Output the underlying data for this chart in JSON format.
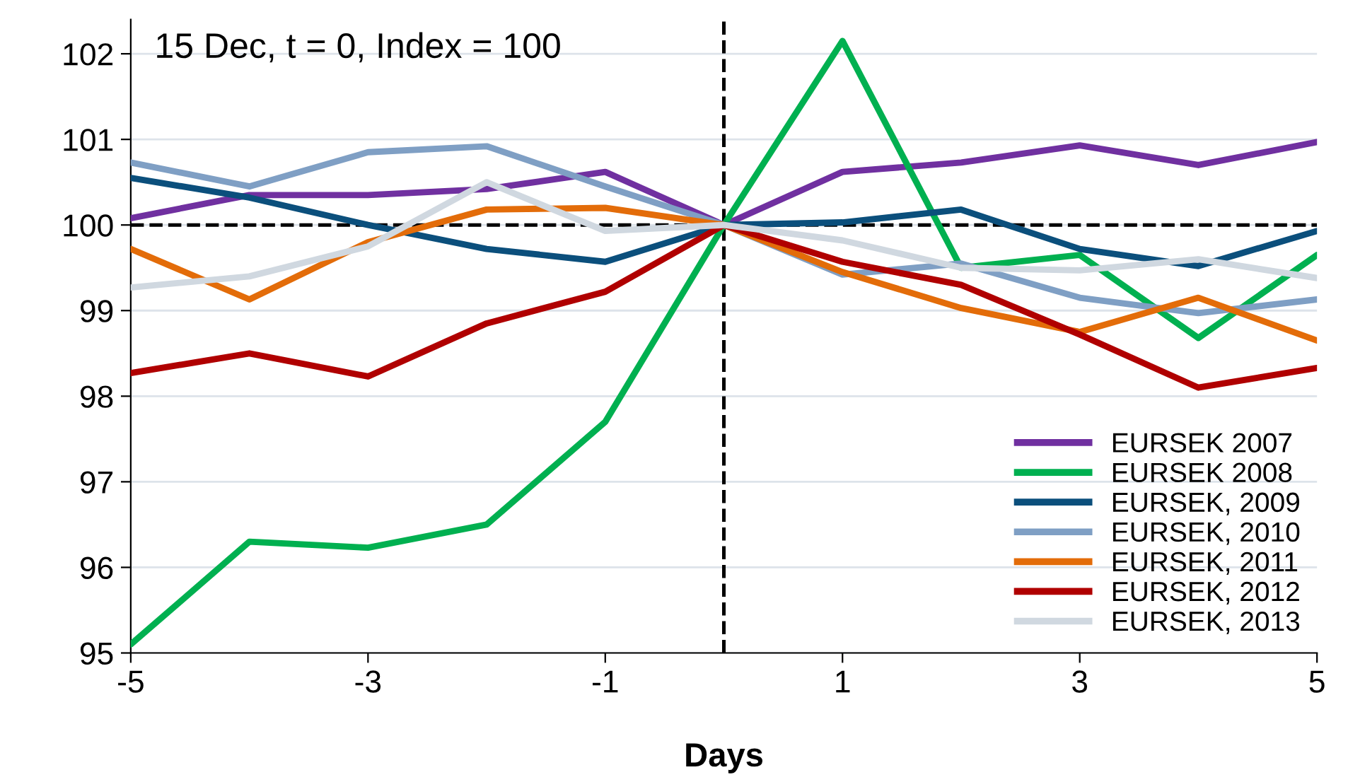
{
  "chart_data": {
    "type": "line",
    "xlabel": "Days",
    "annotations": [
      "15 Dec, t = 0, Index = 100"
    ],
    "x": [
      -5,
      -4,
      -3,
      -2,
      -1,
      0,
      1,
      2,
      3,
      4,
      5
    ],
    "series": [
      {
        "name": "EURSEK 2007",
        "color": "#7030a0",
        "values": [
          100.08,
          100.35,
          100.35,
          100.42,
          100.62,
          100,
          100.62,
          100.73,
          100.93,
          100.7,
          100.97
        ]
      },
      {
        "name": "EURSEK 2008",
        "color": "#00b050",
        "values": [
          95.1,
          96.3,
          96.23,
          96.5,
          97.7,
          100,
          102.15,
          99.5,
          99.65,
          98.68,
          99.65
        ]
      },
      {
        "name": "EURSEK, 2009",
        "color": "#0b4f7c",
        "values": [
          100.55,
          100.32,
          100.0,
          99.72,
          99.57,
          100,
          100.03,
          100.18,
          99.72,
          99.52,
          99.93
        ]
      },
      {
        "name": "EURSEK, 2010",
        "color": "#7f9fc4",
        "values": [
          100.73,
          100.45,
          100.85,
          100.92,
          100.45,
          100,
          99.42,
          99.55,
          99.15,
          98.97,
          99.13
        ]
      },
      {
        "name": "EURSEK, 2011",
        "color": "#e36c09",
        "values": [
          99.72,
          99.13,
          99.8,
          100.18,
          100.2,
          100,
          99.45,
          99.03,
          98.75,
          99.15,
          98.65
        ]
      },
      {
        "name": "EURSEK, 2012",
        "color": "#b00000",
        "values": [
          98.27,
          98.5,
          98.23,
          98.85,
          99.22,
          100,
          99.57,
          99.3,
          98.72,
          98.1,
          98.33
        ]
      },
      {
        "name": "EURSEK, 2013",
        "color": "#d0d8e0",
        "values": [
          99.27,
          99.4,
          99.75,
          100.5,
          99.93,
          100,
          99.82,
          99.5,
          99.47,
          99.6,
          99.38
        ]
      }
    ],
    "xlim": [
      -5,
      5
    ],
    "xticks": [
      -5,
      -3,
      -1,
      1,
      3,
      5
    ],
    "ylim": [
      95,
      102.4
    ],
    "yticks": [
      95,
      96,
      97,
      98,
      99,
      100,
      101,
      102
    ],
    "ref_lines": [
      {
        "axis": "x",
        "value": 0,
        "color": "#000000",
        "line_style": "dashed"
      },
      {
        "axis": "y",
        "value": 100,
        "color": "#000000",
        "line_style": "dashed"
      }
    ],
    "grid": "y",
    "legend": "bottom right",
    "marker": "none",
    "line_style": "solid"
  }
}
